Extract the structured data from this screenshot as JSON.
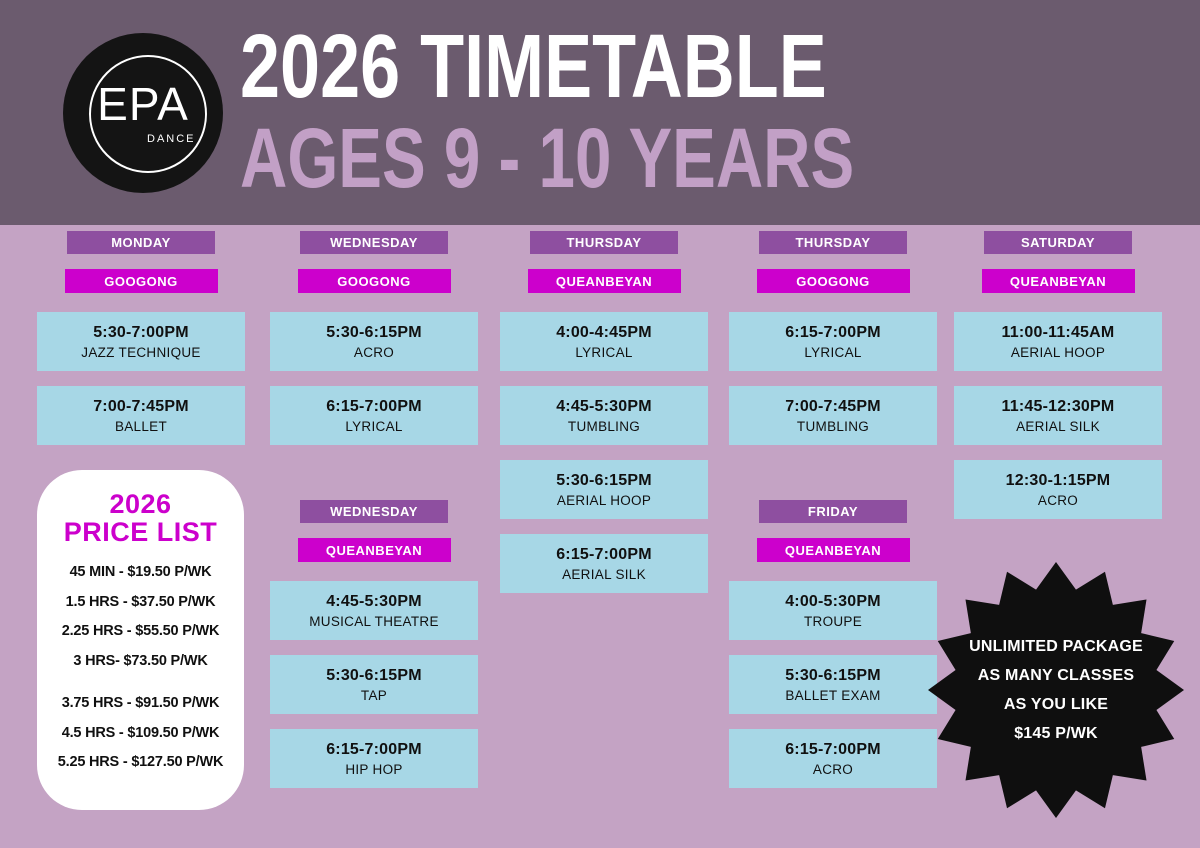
{
  "header": {
    "title": "2026 TIMETABLE",
    "subtitle": "AGES 9 - 10 YEARS",
    "logo": {
      "name": "EPA",
      "sub": "DANCE"
    }
  },
  "schedule": {
    "monday_googong": {
      "day": "MONDAY",
      "location": "GOOGONG",
      "classes": [
        {
          "time": "5:30-7:00PM",
          "name": "JAZZ TECHNIQUE"
        },
        {
          "time": "7:00-7:45PM",
          "name": "BALLET"
        }
      ]
    },
    "wednesday_googong": {
      "day": "WEDNESDAY",
      "location": "GOOGONG",
      "classes": [
        {
          "time": "5:30-6:15PM",
          "name": "ACRO"
        },
        {
          "time": "6:15-7:00PM",
          "name": "LYRICAL"
        }
      ]
    },
    "wednesday_queanbeyan": {
      "day": "WEDNESDAY",
      "location": "QUEANBEYAN",
      "classes": [
        {
          "time": "4:45-5:30PM",
          "name": "MUSICAL THEATRE"
        },
        {
          "time": "5:30-6:15PM",
          "name": "TAP"
        },
        {
          "time": "6:15-7:00PM",
          "name": "HIP HOP"
        }
      ]
    },
    "thursday_queanbeyan": {
      "day": "THURSDAY",
      "location": "QUEANBEYAN",
      "classes": [
        {
          "time": "4:00-4:45PM",
          "name": "LYRICAL"
        },
        {
          "time": "4:45-5:30PM",
          "name": "TUMBLING"
        },
        {
          "time": "5:30-6:15PM",
          "name": "AERIAL HOOP"
        },
        {
          "time": "6:15-7:00PM",
          "name": "AERIAL SILK"
        }
      ]
    },
    "thursday_googong": {
      "day": "THURSDAY",
      "location": "GOOGONG",
      "classes": [
        {
          "time": "6:15-7:00PM",
          "name": "LYRICAL"
        },
        {
          "time": "7:00-7:45PM",
          "name": "TUMBLING"
        }
      ]
    },
    "friday_queanbeyan": {
      "day": "FRIDAY",
      "location": "QUEANBEYAN",
      "classes": [
        {
          "time": "4:00-5:30PM",
          "name": "TROUPE"
        },
        {
          "time": "5:30-6:15PM",
          "name": "BALLET EXAM"
        },
        {
          "time": "6:15-7:00PM",
          "name": "ACRO"
        }
      ]
    },
    "saturday_queanbeyan": {
      "day": "SATURDAY",
      "location": "QUEANBEYAN",
      "classes": [
        {
          "time": "11:00-11:45AM",
          "name": "AERIAL HOOP"
        },
        {
          "time": "11:45-12:30PM",
          "name": "AERIAL SILK"
        },
        {
          "time": "12:30-1:15PM",
          "name": "ACRO"
        }
      ]
    }
  },
  "price_list": {
    "title_line1": "2026",
    "title_line2": "PRICE LIST",
    "items": [
      "45 MIN - $19.50 P/WK",
      "1.5 HRS - $37.50 P/WK",
      "2.25 HRS - $55.50 P/WK",
      "3 HRS- $73.50 P/WK",
      "3.75 HRS - $91.50 P/WK",
      "4.5 HRS - $109.50 P/WK",
      "5.25 HRS - $127.50 P/WK"
    ]
  },
  "unlimited_package": {
    "lines": [
      "UNLIMITED PACKAGE",
      "AS MANY CLASSES",
      "AS YOU LIKE",
      "$145 P/WK"
    ]
  },
  "colors": {
    "header_band": "#6b5b6e",
    "background": "#c4a3c4",
    "day_bar": "#8e4fa0",
    "location_bar": "#cc00cc",
    "class_card": "#a7d7e6",
    "subtitle_text": "#c2a0c6",
    "price_title": "#cc00cc",
    "starburst": "#0f0f0f"
  }
}
